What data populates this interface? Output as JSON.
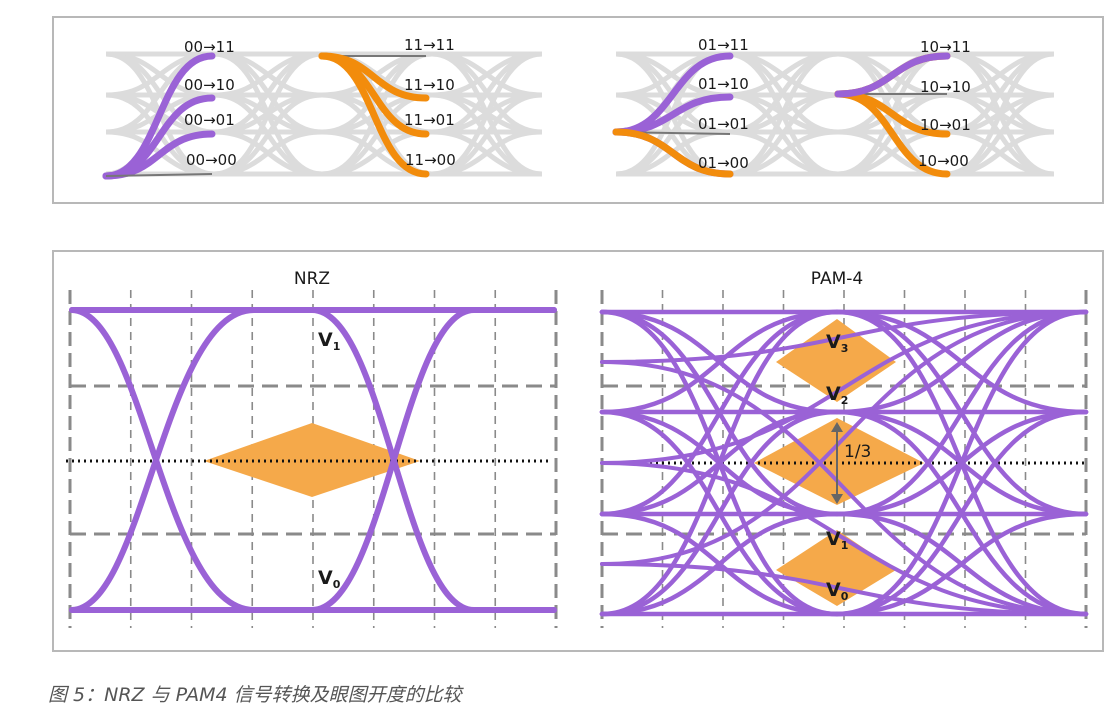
{
  "transitions": {
    "group1": [
      "00→11",
      "00→10",
      "00→01",
      "00→00"
    ],
    "group2": [
      "11→11",
      "11→10",
      "11→01",
      "11→00"
    ],
    "group3": [
      "01→11",
      "01→10",
      "01→01",
      "01→00"
    ],
    "group4": [
      "10→11",
      "10→10",
      "10→01",
      "10→00"
    ]
  },
  "nrz": {
    "title": "NRZ",
    "v1": "V",
    "v1_sub": "1",
    "v0": "V",
    "v0_sub": "0"
  },
  "pam4": {
    "title": "PAM-4",
    "v3": "V",
    "v3_sub": "3",
    "v2": "V",
    "v2_sub": "2",
    "v1": "V",
    "v1_sub": "1",
    "v0": "V",
    "v0_sub": "0",
    "eye_height": "1/3"
  },
  "caption": "图 5：NRZ 与 PAM4 信号转换及眼图开度的比较",
  "colors": {
    "trace": "#9a62d6",
    "eye": "#f5a94a",
    "highlight": "#f28c0c",
    "ghost": "#dcdcdc",
    "grid": "#8a8a8a",
    "frame": "#b8b8b8"
  }
}
